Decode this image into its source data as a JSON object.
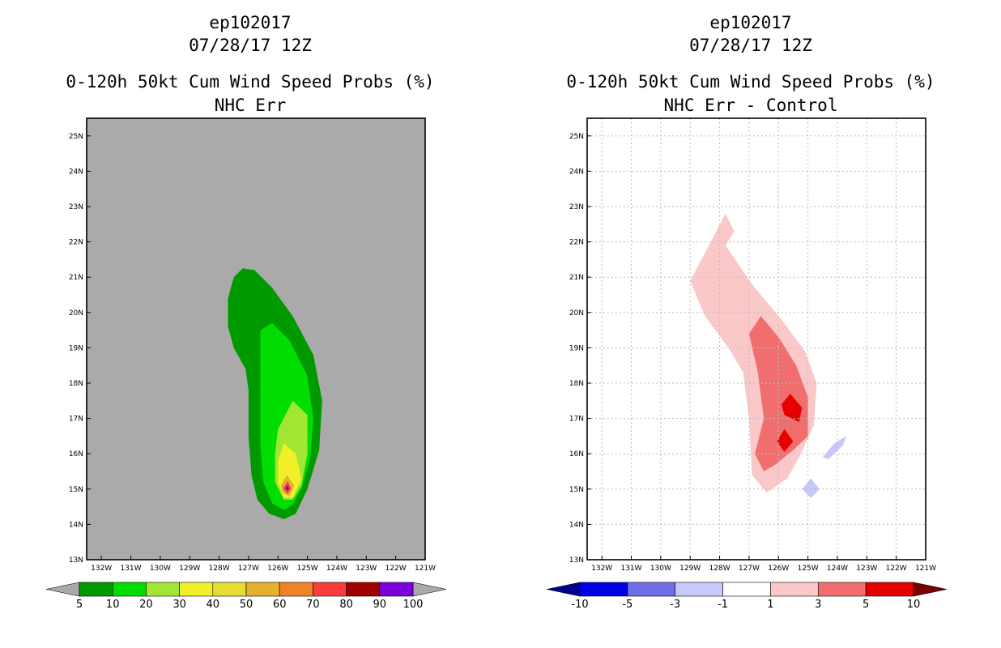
{
  "chart_data": [
    {
      "type": "heatmap",
      "storm_id": "ep102017",
      "init_time": "07/28/17 12Z",
      "title": "0-120h 50kt Cum Wind Speed Probs (%)",
      "subtitle": "NHC Err",
      "x_ticks": [
        "132W",
        "131W",
        "130W",
        "129W",
        "128W",
        "127W",
        "126W",
        "125W",
        "124W",
        "123W",
        "122W",
        "121W"
      ],
      "y_ticks": [
        "13N",
        "14N",
        "15N",
        "16N",
        "17N",
        "18N",
        "19N",
        "20N",
        "21N",
        "22N",
        "23N",
        "24N",
        "25N"
      ],
      "xlim": [
        -132.5,
        -121
      ],
      "ylim": [
        13,
        25.5
      ],
      "grid": false,
      "background": "#aaaaaa",
      "colorbar": {
        "labels": [
          "5",
          "10",
          "20",
          "30",
          "40",
          "50",
          "60",
          "70",
          "80",
          "90",
          "100"
        ],
        "colors": [
          "#009900",
          "#00dd00",
          "#a0e632",
          "#f0f028",
          "#e6dc32",
          "#e6af2d",
          "#f08228",
          "#fa3c3c",
          "#a00000",
          "#7d00dc"
        ],
        "end_colors": [
          "#aaaaaa",
          "#aaaaaa"
        ]
      },
      "contours": [
        {
          "level": "5-10",
          "color": "#009900",
          "points": [
            [
              -127.5,
              21.0
            ],
            [
              -127.2,
              21.25
            ],
            [
              -126.8,
              21.2
            ],
            [
              -126.2,
              20.7
            ],
            [
              -125.5,
              19.9
            ],
            [
              -124.8,
              18.8
            ],
            [
              -124.5,
              17.5
            ],
            [
              -124.6,
              16.1
            ],
            [
              -125.0,
              15.0
            ],
            [
              -125.4,
              14.3
            ],
            [
              -125.8,
              14.15
            ],
            [
              -126.3,
              14.3
            ],
            [
              -126.7,
              14.7
            ],
            [
              -126.9,
              15.4
            ],
            [
              -127.0,
              16.5
            ],
            [
              -127.0,
              17.8
            ],
            [
              -127.1,
              18.4
            ],
            [
              -127.5,
              19.0
            ],
            [
              -127.7,
              19.6
            ],
            [
              -127.7,
              20.4
            ]
          ]
        },
        {
          "level": "10-20",
          "color": "#00dd00",
          "points": [
            [
              -126.6,
              19.5
            ],
            [
              -126.2,
              19.7
            ],
            [
              -125.6,
              19.2
            ],
            [
              -125.0,
              18.2
            ],
            [
              -124.8,
              17.0
            ],
            [
              -124.9,
              15.9
            ],
            [
              -125.2,
              15.0
            ],
            [
              -125.5,
              14.55
            ],
            [
              -125.8,
              14.4
            ],
            [
              -126.2,
              14.6
            ],
            [
              -126.5,
              15.2
            ],
            [
              -126.6,
              16.2
            ],
            [
              -126.6,
              17.5
            ],
            [
              -126.6,
              18.5
            ]
          ]
        },
        {
          "level": "20-30",
          "color": "#a0e632",
          "points": [
            [
              -125.5,
              17.5
            ],
            [
              -125.0,
              17.1
            ],
            [
              -125.0,
              16.0
            ],
            [
              -125.2,
              15.1
            ],
            [
              -125.5,
              14.7
            ],
            [
              -125.8,
              14.7
            ],
            [
              -126.1,
              15.2
            ],
            [
              -126.1,
              16.0
            ],
            [
              -126.0,
              16.7
            ]
          ]
        },
        {
          "level": "30-40",
          "color": "#f0f028",
          "points": [
            [
              -125.8,
              16.3
            ],
            [
              -125.4,
              16.0
            ],
            [
              -125.2,
              15.3
            ],
            [
              -125.5,
              14.75
            ],
            [
              -125.8,
              14.75
            ],
            [
              -126.0,
              15.2
            ],
            [
              -126.0,
              15.8
            ]
          ]
        },
        {
          "level": "40-60",
          "color": "#e6af2d",
          "points": [
            [
              -125.7,
              15.4
            ],
            [
              -125.45,
              15.1
            ],
            [
              -125.6,
              14.8
            ],
            [
              -125.85,
              14.9
            ],
            [
              -125.9,
              15.1
            ]
          ]
        },
        {
          "level": "60-80",
          "color": "#fa3c3c",
          "points": [
            [
              -125.68,
              15.22
            ],
            [
              -125.55,
              15.02
            ],
            [
              -125.68,
              14.86
            ],
            [
              -125.82,
              15.02
            ]
          ]
        },
        {
          "level": "80-100",
          "color": "#7d00dc",
          "points": [
            [
              -125.68,
              15.1
            ],
            [
              -125.62,
              15.02
            ],
            [
              -125.68,
              14.95
            ],
            [
              -125.75,
              15.02
            ]
          ]
        }
      ]
    },
    {
      "type": "heatmap",
      "storm_id": "ep102017",
      "init_time": "07/28/17 12Z",
      "title": "0-120h 50kt Cum Wind Speed Probs (%)",
      "subtitle": "NHC Err - Control",
      "x_ticks": [
        "132W",
        "131W",
        "130W",
        "129W",
        "128W",
        "127W",
        "126W",
        "125W",
        "124W",
        "123W",
        "122W",
        "121W"
      ],
      "y_ticks": [
        "13N",
        "14N",
        "15N",
        "16N",
        "17N",
        "18N",
        "19N",
        "20N",
        "21N",
        "22N",
        "23N",
        "24N",
        "25N"
      ],
      "xlim": [
        -132.5,
        -121
      ],
      "ylim": [
        13,
        25.5
      ],
      "grid": true,
      "background": "#ffffff",
      "colorbar": {
        "labels": [
          "-10",
          "-5",
          "-3",
          "-1",
          "1",
          "3",
          "5",
          "10"
        ],
        "colors": [
          "#0000e6",
          "#6e6eeb",
          "#c8c8fa",
          "#ffffff",
          "#fac8c8",
          "#f06e6e",
          "#e60000"
        ],
        "end_colors": [
          "#00008c",
          "#780000"
        ]
      },
      "contours": [
        {
          "level": "1-3",
          "color": "#fac8c8",
          "points": [
            [
              -128.3,
              22.0
            ],
            [
              -127.8,
              22.8
            ],
            [
              -127.5,
              22.3
            ],
            [
              -127.8,
              21.9
            ],
            [
              -126.9,
              20.8
            ],
            [
              -125.9,
              19.8
            ],
            [
              -125.1,
              18.9
            ],
            [
              -124.7,
              18.0
            ],
            [
              -124.8,
              16.8
            ],
            [
              -125.3,
              15.9
            ],
            [
              -125.7,
              15.3
            ],
            [
              -126.4,
              14.9
            ],
            [
              -126.9,
              15.4
            ],
            [
              -127.0,
              17.0
            ],
            [
              -127.2,
              18.3
            ],
            [
              -127.7,
              19.0
            ],
            [
              -128.5,
              19.9
            ],
            [
              -129.0,
              20.9
            ]
          ]
        },
        {
          "level": "3-5",
          "color": "#f06e6e",
          "points": [
            [
              -126.6,
              19.9
            ],
            [
              -126.0,
              19.3
            ],
            [
              -125.4,
              18.5
            ],
            [
              -125.0,
              17.6
            ],
            [
              -125.0,
              16.5
            ],
            [
              -125.5,
              16.1
            ],
            [
              -126.1,
              15.7
            ],
            [
              -126.5,
              15.5
            ],
            [
              -126.8,
              16.0
            ],
            [
              -126.5,
              17.0
            ],
            [
              -126.7,
              18.3
            ],
            [
              -127.0,
              19.4
            ]
          ]
        },
        {
          "level": "5-10 (a)",
          "color": "#e60000",
          "points": [
            [
              -125.6,
              17.7
            ],
            [
              -125.2,
              17.3
            ],
            [
              -125.3,
              16.9
            ],
            [
              -125.8,
              17.1
            ],
            [
              -125.9,
              17.4
            ]
          ]
        },
        {
          "level": "5-10 (b)",
          "color": "#e60000",
          "points": [
            [
              -125.8,
              16.7
            ],
            [
              -125.5,
              16.35
            ],
            [
              -125.8,
              16.05
            ],
            [
              -126.05,
              16.35
            ]
          ]
        },
        {
          "level": "-3--1 (a)",
          "color": "#c8c8fa",
          "points": [
            [
              -124.1,
              16.3
            ],
            [
              -123.7,
              16.5
            ],
            [
              -123.8,
              16.25
            ],
            [
              -124.3,
              15.85
            ],
            [
              -124.5,
              15.9
            ]
          ]
        },
        {
          "level": "-3--1 (b)",
          "color": "#c8c8fa",
          "points": [
            [
              -124.9,
              15.3
            ],
            [
              -124.6,
              15.0
            ],
            [
              -124.9,
              14.75
            ],
            [
              -125.2,
              15.0
            ]
          ]
        }
      ]
    }
  ]
}
